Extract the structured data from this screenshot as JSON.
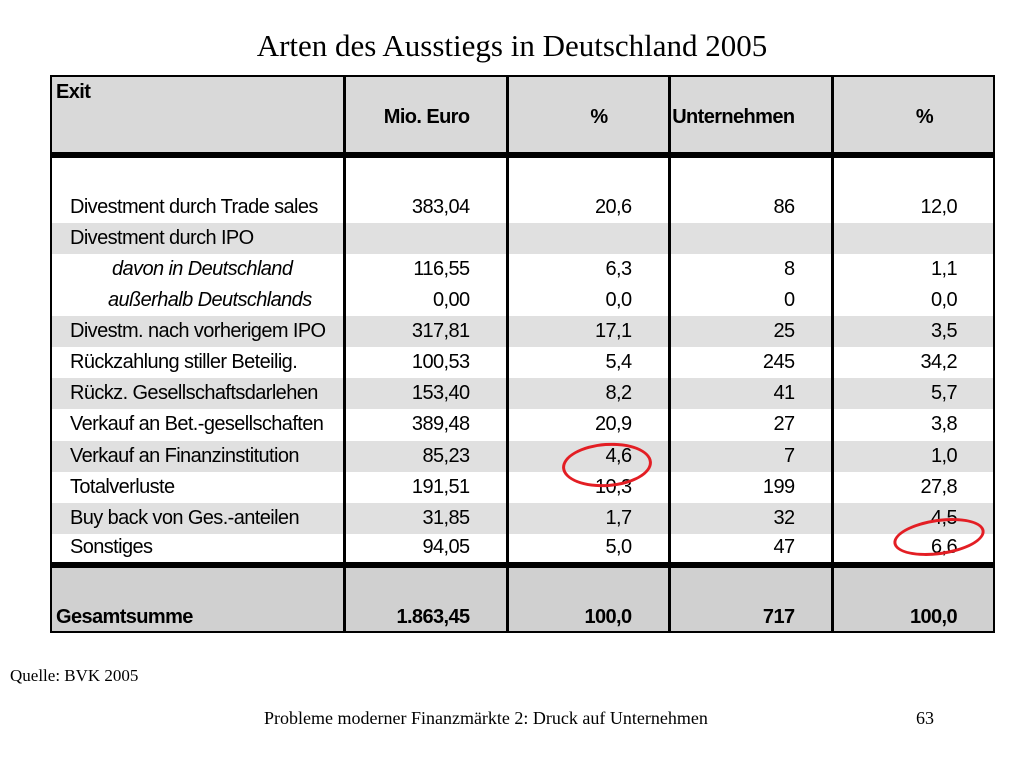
{
  "title": "Arten des Ausstiegs in Deutschland  2005",
  "table": {
    "headers": [
      "Exit",
      "Mio. Euro",
      "%",
      "Unternehmen",
      "%"
    ],
    "rows": [
      {
        "label": "Divestment durch Trade sales",
        "mio": "383,04",
        "pct": "20,6",
        "unt": "86",
        "upct": "12,0"
      },
      {
        "label": "Divestment durch IPO",
        "mio": "",
        "pct": "",
        "unt": "",
        "upct": ""
      },
      {
        "label": "davon in Deutschland",
        "mio": "116,55",
        "pct": "6,3",
        "unt": "8",
        "upct": "1,1"
      },
      {
        "label": "außerhalb Deutschlands",
        "mio": "0,00",
        "pct": "0,0",
        "unt": "0",
        "upct": "0,0"
      },
      {
        "label": "Divestm. nach vorherigem IPO",
        "mio": "317,81",
        "pct": "17,1",
        "unt": "25",
        "upct": "3,5"
      },
      {
        "label": "Rückzahlung stiller Beteilig.",
        "mio": "100,53",
        "pct": "5,4",
        "unt": "245",
        "upct": "34,2"
      },
      {
        "label": "Rückz. Gesellschaftsdarlehen",
        "mio": "153,40",
        "pct": "8,2",
        "unt": "41",
        "upct": "5,7"
      },
      {
        "label": "Verkauf an Bet.-gesellschaften",
        "mio": "389,48",
        "pct": "20,9",
        "unt": "27",
        "upct": "3,8"
      },
      {
        "label": "Verkauf an Finanzinstitution",
        "mio": "85,23",
        "pct": "4,6",
        "unt": "7",
        "upct": "1,0"
      },
      {
        "label": "Totalverluste",
        "mio": "191,51",
        "pct": "10,3",
        "unt": "199",
        "upct": "27,8"
      },
      {
        "label": "Buy back von Ges.-anteilen",
        "mio": "31,85",
        "pct": "1,7",
        "unt": "32",
        "upct": "4,5"
      },
      {
        "label": "Sonstiges",
        "mio": "94,05",
        "pct": "5,0",
        "unt": "47",
        "upct": "6,6"
      }
    ],
    "total": {
      "label": "Gesamtsumme",
      "mio": "1.863,45",
      "pct": "100,0",
      "unt": "717",
      "upct": "100,0"
    }
  },
  "source": "Quelle: BVK 2005",
  "footer": "Probleme moderner Finanzmärkte 2: Druck auf Unternehmen",
  "page_number": "63",
  "colors": {
    "highlight_circle": "#e31e24",
    "row_shade": "#e0e0e0",
    "header_bg": "#d9d9d9"
  }
}
